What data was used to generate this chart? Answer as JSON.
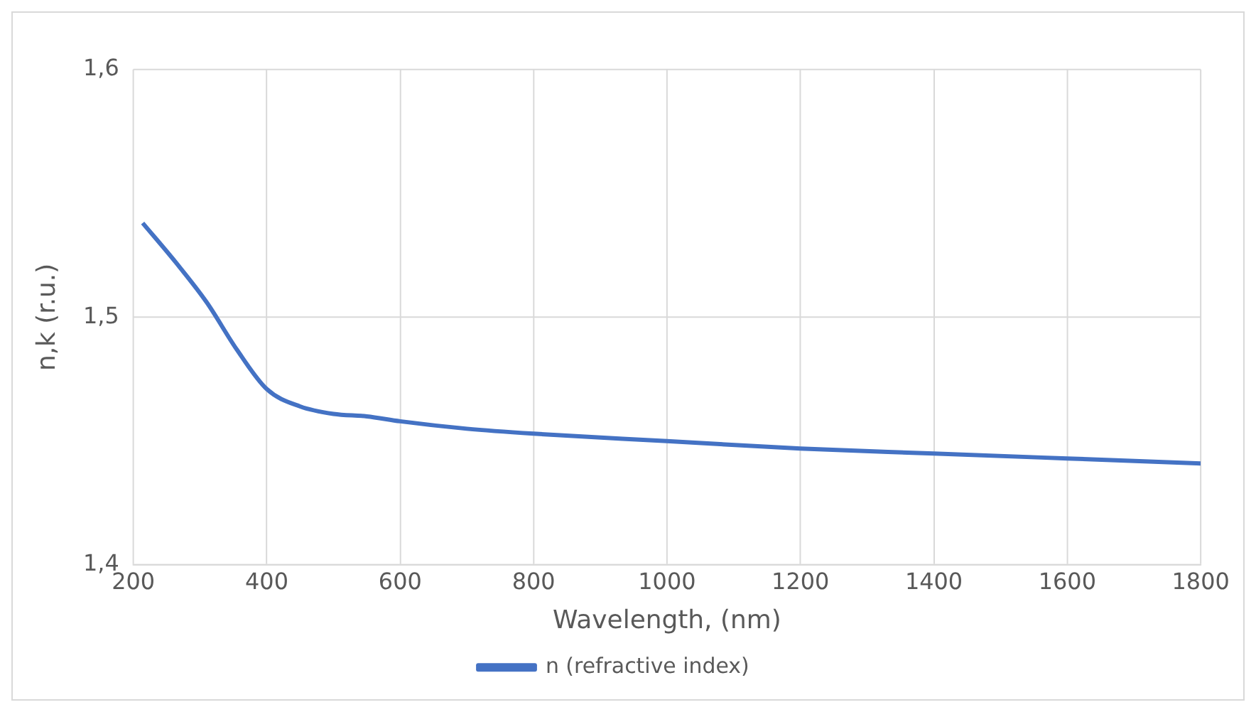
{
  "chart_data": {
    "type": "line",
    "xlabel": "Wavelength, (nm)",
    "ylabel": "n,k (r.u.)",
    "xlim": [
      200,
      1800
    ],
    "xticks": [
      200,
      400,
      600,
      800,
      1000,
      1200,
      1400,
      1600,
      1800
    ],
    "ylim": [
      1.4,
      1.6
    ],
    "yticks": [
      {
        "value": 1.4,
        "label": "1,4"
      },
      {
        "value": 1.5,
        "label": "1,5"
      },
      {
        "value": 1.6,
        "label": "1,6"
      }
    ],
    "grid": true,
    "legend": "bottom",
    "marker": "none",
    "line_style": "solid",
    "series": [
      {
        "name": "n (refractive index)",
        "color": "#4472c4",
        "x": [
          214,
          264,
          310,
          355,
          400,
          450,
          500,
          550,
          600,
          700,
          800,
          1000,
          1200,
          1400,
          1600,
          1800
        ],
        "values": [
          1.538,
          1.522,
          1.506,
          1.487,
          1.471,
          1.464,
          1.461,
          1.46,
          1.458,
          1.455,
          1.453,
          1.45,
          1.447,
          1.445,
          1.443,
          1.441
        ]
      }
    ]
  }
}
